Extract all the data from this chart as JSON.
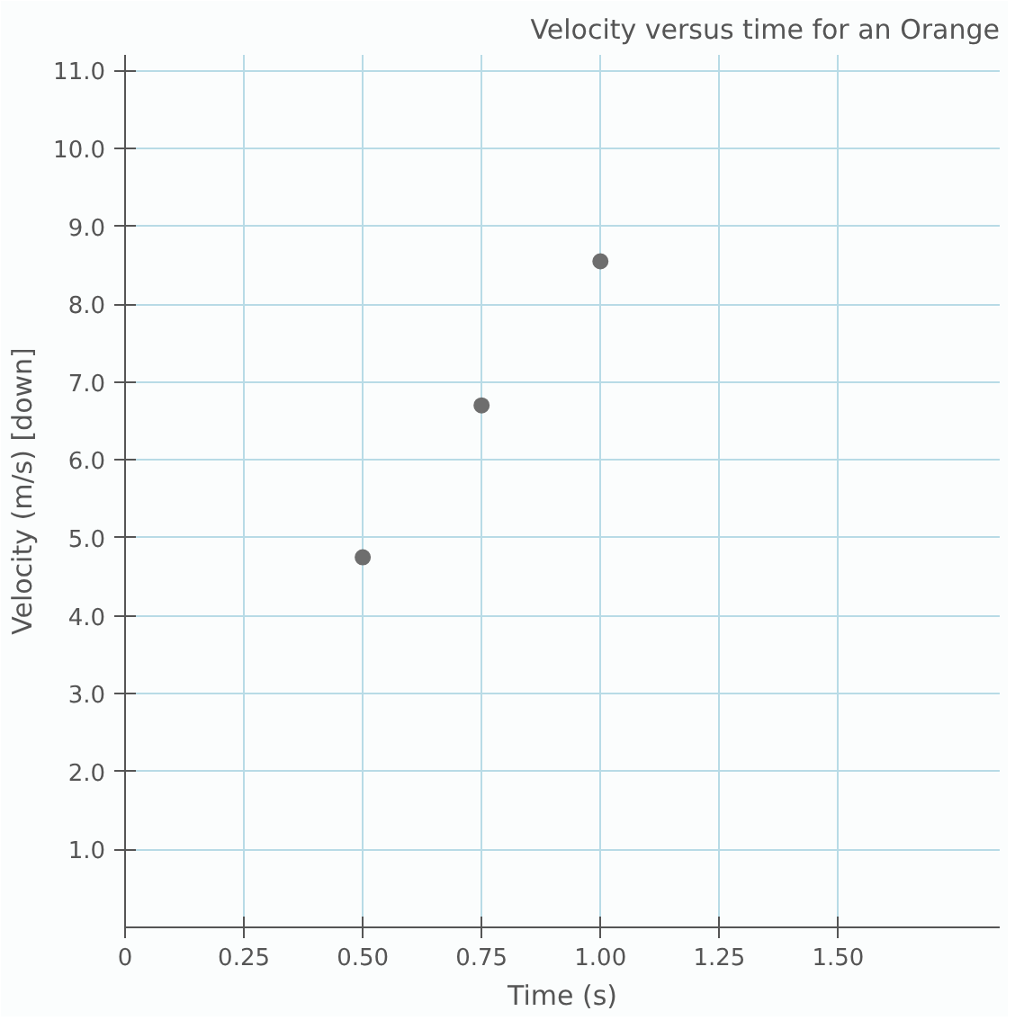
{
  "chart_data": {
    "type": "scatter",
    "title": "Velocity versus time for an Orange",
    "xlabel": "Time (s)",
    "ylabel": "Velocity (m/s) [down]",
    "x": [
      0.5,
      0.75,
      1.0
    ],
    "series": [
      {
        "color": "#6e6e6e",
        "values": [
          4.75,
          6.7,
          8.55
        ]
      }
    ],
    "xlim": [
      0,
      1.84
    ],
    "ylim": [
      0,
      11.2
    ],
    "xticks": [
      {
        "value": 0,
        "label": "0"
      },
      0.25,
      {
        "value": 0.5,
        "label": "0.50"
      },
      0.75,
      {
        "value": 1,
        "label": "1.00"
      },
      1.25,
      {
        "value": 1.5,
        "label": "1.50"
      }
    ],
    "yticks": [
      {
        "value": 1,
        "label": "1.0"
      },
      {
        "value": 2,
        "label": "2.0"
      },
      {
        "value": 3,
        "label": "3.0"
      },
      {
        "value": 4,
        "label": "4.0"
      },
      {
        "value": 5,
        "label": "5.0"
      },
      {
        "value": 6,
        "label": "6.0"
      },
      {
        "value": 7,
        "label": "7.0"
      },
      {
        "value": 8,
        "label": "8.0"
      },
      {
        "value": 9,
        "label": "9.0"
      },
      {
        "value": 10,
        "label": "10.0"
      },
      {
        "value": 11,
        "label": "11.0"
      }
    ],
    "grid": true,
    "marker": "circle"
  }
}
